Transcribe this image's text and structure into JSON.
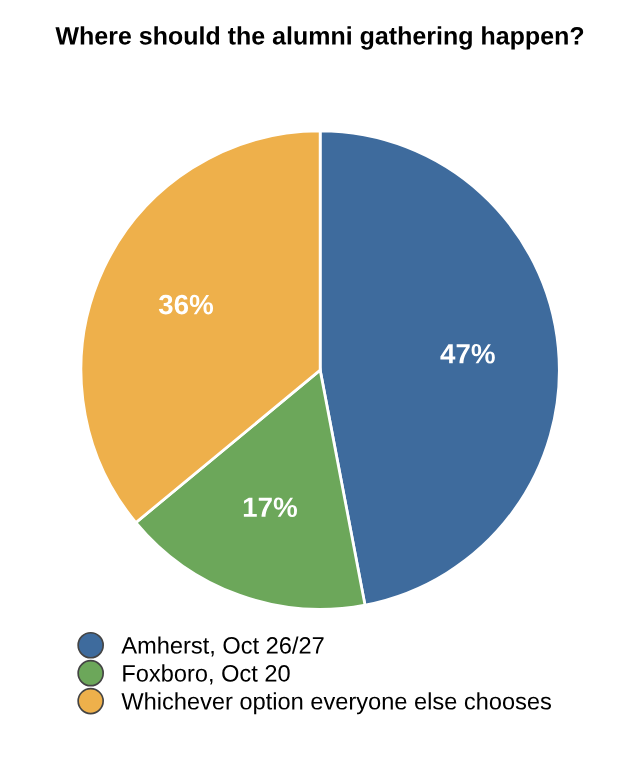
{
  "chart_data": {
    "type": "pie",
    "title": "Where should the alumni gathering happen?",
    "categories": [
      "Amherst, Oct 26/27",
      "Foxboro, Oct 20",
      "Whichever option everyone else chooses"
    ],
    "values": [
      47,
      17,
      36
    ],
    "colors": [
      "#3e6b9d",
      "#6ca75a",
      "#eeb04b"
    ],
    "value_labels": [
      "47%",
      "17%",
      "36%"
    ],
    "legend": "bottom"
  }
}
